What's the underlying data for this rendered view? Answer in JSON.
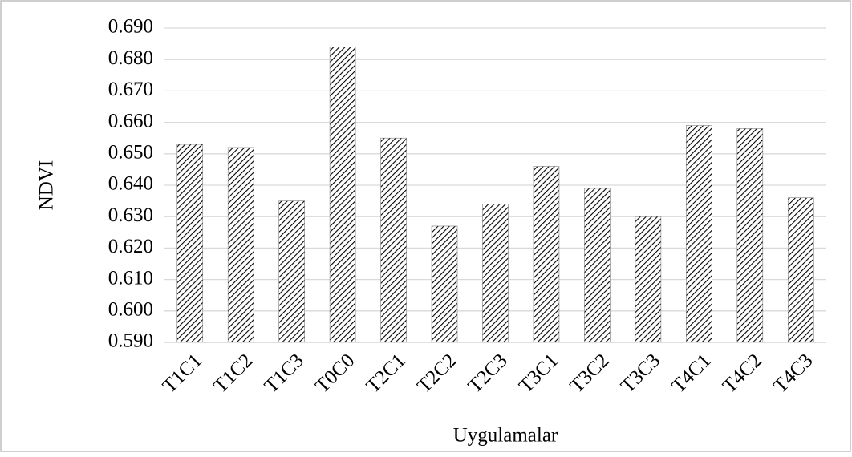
{
  "chart_data": {
    "type": "bar",
    "x_label": "Uygulamalar",
    "y_label": "NDVI",
    "categories": [
      "T1C1",
      "T1C2",
      "T1C3",
      "T0C0",
      "T2C1",
      "T2C2",
      "T2C3",
      "T3C1",
      "T3C2",
      "T3C3",
      "T4C1",
      "T4C2",
      "T4C3"
    ],
    "values": [
      0.653,
      0.652,
      0.635,
      0.684,
      0.655,
      0.627,
      0.634,
      0.646,
      0.639,
      0.63,
      0.659,
      0.658,
      0.636
    ],
    "color": "#000000",
    "ylim": [
      0.59,
      0.69
    ],
    "yticks": [
      {
        "value": 0.59,
        "label": "0.590"
      },
      {
        "value": 0.6,
        "label": "0.600"
      },
      {
        "value": 0.61,
        "label": "0.610"
      },
      {
        "value": 0.62,
        "label": "0.620"
      },
      {
        "value": 0.63,
        "label": "0.630"
      },
      {
        "value": 0.64,
        "label": "0.640"
      },
      {
        "value": 0.65,
        "label": "0.650"
      },
      {
        "value": 0.66,
        "label": "0.660"
      },
      {
        "value": 0.67,
        "label": "0.670"
      },
      {
        "value": 0.68,
        "label": "0.680"
      },
      {
        "value": 0.69,
        "label": "0.690"
      }
    ],
    "grid": true
  }
}
